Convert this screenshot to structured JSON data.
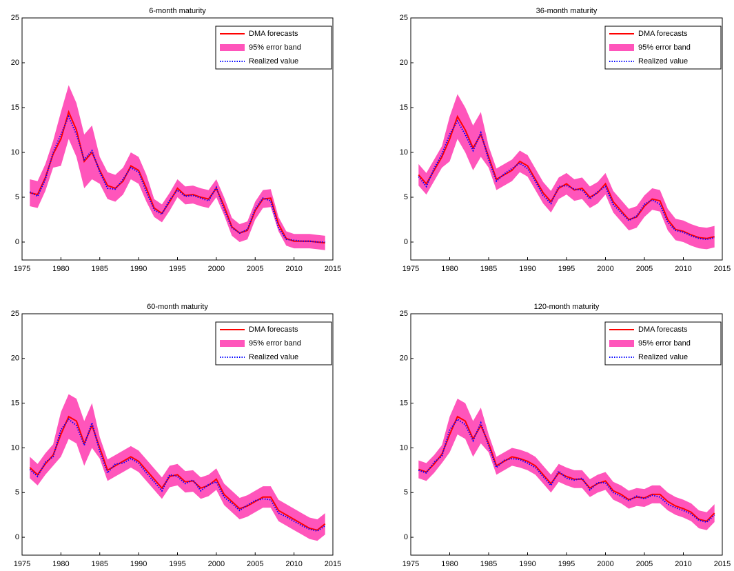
{
  "chart_data": [
    {
      "type": "line",
      "title": "6-month maturity",
      "legend": "upper right",
      "xlim": [
        1975,
        2015
      ],
      "ylim": [
        -2,
        25
      ],
      "xticks": [
        1975,
        1980,
        1985,
        1990,
        1995,
        2000,
        2005,
        2010,
        2015
      ],
      "yticks": [
        0,
        5,
        10,
        15,
        20,
        25
      ],
      "x": [
        1976,
        1977,
        1978,
        1979,
        1980,
        1981,
        1982,
        1983,
        1984,
        1985,
        1986,
        1987,
        1988,
        1989,
        1990,
        1991,
        1992,
        1993,
        1994,
        1995,
        1996,
        1997,
        1998,
        1999,
        2000,
        2001,
        2002,
        2003,
        2004,
        2005,
        2006,
        2007,
        2008,
        2009,
        2010,
        2011,
        2012,
        2013,
        2014
      ],
      "series": [
        {
          "name": "DMA forecasts",
          "color": "#ff0000",
          "values": [
            5.5,
            5.3,
            7.2,
            9.8,
            11.5,
            14.5,
            12.5,
            9.0,
            10.0,
            8.0,
            6.3,
            6.0,
            6.8,
            8.5,
            8.0,
            6.0,
            3.8,
            3.2,
            4.5,
            6.0,
            5.2,
            5.3,
            5.0,
            4.8,
            6.0,
            4.0,
            1.7,
            1.0,
            1.3,
            3.5,
            4.8,
            4.9,
            2.0,
            0.4,
            0.1,
            0.1,
            0.1,
            0.0,
            -0.1
          ]
        },
        {
          "name": "95% error band",
          "color": "#ff55bb",
          "lower": [
            4.0,
            3.8,
            5.7,
            8.3,
            8.5,
            11.5,
            9.5,
            6.0,
            7.0,
            6.5,
            4.8,
            4.5,
            5.3,
            7.0,
            6.5,
            4.5,
            2.8,
            2.2,
            3.5,
            5.0,
            4.2,
            4.3,
            4.0,
            3.8,
            5.0,
            3.0,
            0.7,
            0.0,
            0.3,
            2.5,
            3.8,
            3.9,
            1.2,
            -0.4,
            -0.7,
            -0.7,
            -0.7,
            -0.8,
            -0.9
          ],
          "upper": [
            7.0,
            6.8,
            8.7,
            11.3,
            14.5,
            17.5,
            15.5,
            12.0,
            13.0,
            9.5,
            7.8,
            7.5,
            8.3,
            10.0,
            9.5,
            7.5,
            4.8,
            4.2,
            5.5,
            7.0,
            6.2,
            6.3,
            6.0,
            5.8,
            7.0,
            5.0,
            2.7,
            2.0,
            2.3,
            4.5,
            5.8,
            5.9,
            2.8,
            1.2,
            0.9,
            0.9,
            0.9,
            0.8,
            0.7
          ]
        },
        {
          "name": "Realized value",
          "color": "#0000ff",
          "linestyle": "dotted",
          "values": [
            5.6,
            5.1,
            7.0,
            10.0,
            12.0,
            14.0,
            12.0,
            9.2,
            10.2,
            7.8,
            6.0,
            5.9,
            7.0,
            8.3,
            7.8,
            5.6,
            3.6,
            3.1,
            4.7,
            5.8,
            5.1,
            5.2,
            4.9,
            4.6,
            6.1,
            3.6,
            1.6,
            1.0,
            1.4,
            3.7,
            4.9,
            4.6,
            1.6,
            0.3,
            0.2,
            0.1,
            0.1,
            0.0,
            0.0
          ]
        }
      ]
    },
    {
      "type": "line",
      "title": "36-month maturity",
      "legend": "upper right",
      "xlim": [
        1975,
        2015
      ],
      "ylim": [
        -2,
        25
      ],
      "xticks": [
        1975,
        1980,
        1985,
        1990,
        1995,
        2000,
        2005,
        2010,
        2015
      ],
      "yticks": [
        0,
        5,
        10,
        15,
        20,
        25
      ],
      "x": [
        1976,
        1977,
        1978,
        1979,
        1980,
        1981,
        1982,
        1983,
        1984,
        1985,
        1986,
        1987,
        1988,
        1989,
        1990,
        1991,
        1992,
        1993,
        1994,
        1995,
        1996,
        1997,
        1998,
        1999,
        2000,
        2001,
        2002,
        2003,
        2004,
        2005,
        2006,
        2007,
        2008,
        2009,
        2010,
        2011,
        2012,
        2013,
        2014
      ],
      "series": [
        {
          "name": "DMA forecasts",
          "color": "#ff0000",
          "values": [
            7.5,
            6.5,
            8.0,
            9.5,
            11.5,
            14.0,
            12.5,
            10.5,
            12.0,
            9.5,
            7.0,
            7.5,
            8.0,
            9.0,
            8.5,
            7.0,
            5.5,
            4.5,
            6.0,
            6.5,
            5.8,
            6.0,
            5.0,
            5.5,
            6.5,
            4.5,
            3.5,
            2.5,
            2.8,
            4.0,
            4.8,
            4.6,
            2.5,
            1.4,
            1.2,
            0.8,
            0.5,
            0.4,
            0.6
          ]
        },
        {
          "name": "95% error band",
          "color": "#ff55bb",
          "lower": [
            6.3,
            5.3,
            6.8,
            8.3,
            9.0,
            11.5,
            10.0,
            8.0,
            9.5,
            8.3,
            5.8,
            6.3,
            6.8,
            7.8,
            7.3,
            5.8,
            4.3,
            3.3,
            4.8,
            5.3,
            4.6,
            4.8,
            3.8,
            4.3,
            5.3,
            3.3,
            2.3,
            1.3,
            1.6,
            2.8,
            3.6,
            3.4,
            1.3,
            0.2,
            0.0,
            -0.4,
            -0.7,
            -0.8,
            -0.6
          ],
          "upper": [
            8.7,
            7.7,
            9.2,
            10.7,
            14.0,
            16.5,
            15.0,
            13.0,
            14.5,
            10.7,
            8.2,
            8.7,
            9.2,
            10.2,
            9.7,
            8.2,
            6.7,
            5.7,
            7.2,
            7.7,
            7.0,
            7.2,
            6.2,
            6.7,
            7.7,
            5.7,
            4.7,
            3.7,
            4.0,
            5.2,
            6.0,
            5.8,
            3.7,
            2.6,
            2.4,
            2.0,
            1.7,
            1.6,
            1.8
          ]
        },
        {
          "name": "Realized value",
          "color": "#0000ff",
          "linestyle": "dotted",
          "values": [
            7.3,
            6.2,
            8.2,
            9.8,
            12.0,
            13.5,
            12.0,
            10.2,
            12.2,
            9.2,
            6.8,
            7.6,
            8.2,
            8.8,
            8.2,
            6.8,
            5.2,
            4.3,
            6.2,
            6.3,
            5.9,
            5.8,
            4.8,
            5.6,
            6.2,
            4.2,
            3.3,
            2.4,
            2.9,
            4.2,
            4.7,
            4.2,
            2.2,
            1.3,
            1.1,
            0.7,
            0.4,
            0.3,
            0.5
          ]
        }
      ]
    },
    {
      "type": "line",
      "title": "60-month maturity",
      "legend": "upper right",
      "xlim": [
        1975,
        2015
      ],
      "ylim": [
        -2,
        25
      ],
      "xticks": [
        1975,
        1980,
        1985,
        1990,
        1995,
        2000,
        2005,
        2010,
        2015
      ],
      "yticks": [
        0,
        5,
        10,
        15,
        20,
        25
      ],
      "x": [
        1976,
        1977,
        1978,
        1979,
        1980,
        1981,
        1982,
        1983,
        1984,
        1985,
        1986,
        1987,
        1988,
        1989,
        1990,
        1991,
        1992,
        1993,
        1994,
        1995,
        1996,
        1997,
        1998,
        1999,
        2000,
        2001,
        2002,
        2003,
        2004,
        2005,
        2006,
        2007,
        2008,
        2009,
        2010,
        2011,
        2012,
        2013,
        2014
      ],
      "series": [
        {
          "name": "DMA forecasts",
          "color": "#ff0000",
          "values": [
            7.8,
            7.0,
            8.2,
            9.2,
            11.5,
            13.5,
            13.0,
            10.5,
            12.5,
            10.0,
            7.5,
            8.0,
            8.5,
            9.0,
            8.5,
            7.5,
            6.5,
            5.5,
            6.8,
            7.0,
            6.2,
            6.3,
            5.5,
            5.8,
            6.5,
            4.8,
            4.0,
            3.2,
            3.5,
            4.0,
            4.5,
            4.5,
            3.0,
            2.5,
            2.0,
            1.5,
            1.0,
            0.8,
            1.5
          ]
        },
        {
          "name": "95% error band",
          "color": "#ff55bb",
          "lower": [
            6.6,
            5.8,
            7.0,
            8.0,
            9.0,
            11.0,
            10.5,
            8.0,
            10.0,
            8.8,
            6.3,
            6.8,
            7.3,
            7.8,
            7.3,
            6.3,
            5.3,
            4.3,
            5.6,
            5.8,
            5.0,
            5.1,
            4.3,
            4.6,
            5.3,
            3.6,
            2.8,
            2.0,
            2.3,
            2.8,
            3.3,
            3.3,
            1.8,
            1.3,
            0.8,
            0.3,
            -0.2,
            -0.4,
            0.3
          ],
          "upper": [
            9.0,
            8.2,
            9.4,
            10.4,
            14.0,
            16.0,
            15.5,
            13.0,
            15.0,
            11.2,
            8.7,
            9.2,
            9.7,
            10.2,
            9.7,
            8.7,
            7.7,
            6.7,
            8.0,
            8.2,
            7.4,
            7.5,
            6.7,
            7.0,
            7.7,
            6.0,
            5.2,
            4.4,
            4.7,
            5.2,
            5.7,
            5.7,
            4.2,
            3.7,
            3.2,
            2.7,
            2.2,
            2.0,
            2.7
          ]
        },
        {
          "name": "Realized value",
          "color": "#0000ff",
          "linestyle": "dotted",
          "values": [
            7.6,
            6.8,
            8.4,
            9.0,
            12.0,
            13.2,
            12.5,
            10.3,
            12.8,
            9.6,
            7.2,
            8.2,
            8.3,
            8.8,
            8.3,
            7.2,
            6.2,
            5.2,
            7.0,
            6.8,
            6.0,
            6.4,
            5.2,
            5.9,
            6.2,
            4.5,
            3.8,
            3.0,
            3.6,
            4.1,
            4.3,
            4.2,
            2.7,
            2.3,
            1.8,
            1.3,
            0.9,
            0.7,
            1.3
          ]
        }
      ]
    },
    {
      "type": "line",
      "title": "120-month maturity",
      "legend": "upper right",
      "xlim": [
        1975,
        2015
      ],
      "ylim": [
        -2,
        25
      ],
      "xticks": [
        1975,
        1980,
        1985,
        1990,
        1995,
        2000,
        2005,
        2010,
        2015
      ],
      "yticks": [
        0,
        5,
        10,
        15,
        20,
        25
      ],
      "x": [
        1976,
        1977,
        1978,
        1979,
        1980,
        1981,
        1982,
        1983,
        1984,
        1985,
        1986,
        1987,
        1988,
        1989,
        1990,
        1991,
        1992,
        1993,
        1994,
        1995,
        1996,
        1997,
        1998,
        1999,
        2000,
        2001,
        2002,
        2003,
        2004,
        2005,
        2006,
        2007,
        2008,
        2009,
        2010,
        2011,
        2012,
        2013,
        2014
      ],
      "series": [
        {
          "name": "DMA forecasts",
          "color": "#ff0000",
          "values": [
            7.6,
            7.3,
            8.2,
            9.3,
            11.5,
            13.5,
            13.0,
            11.0,
            12.5,
            10.5,
            8.0,
            8.5,
            9.0,
            8.8,
            8.5,
            8.0,
            7.0,
            6.0,
            7.2,
            6.8,
            6.5,
            6.5,
            5.5,
            6.0,
            6.3,
            5.2,
            4.8,
            4.2,
            4.5,
            4.4,
            4.8,
            4.8,
            4.0,
            3.5,
            3.2,
            2.8,
            2.0,
            1.8,
            2.7
          ]
        },
        {
          "name": "95% error band",
          "color": "#ff55bb",
          "lower": [
            6.6,
            6.3,
            7.2,
            8.3,
            9.5,
            11.5,
            11.0,
            9.0,
            10.5,
            9.5,
            7.0,
            7.5,
            8.0,
            7.8,
            7.5,
            7.0,
            6.0,
            5.0,
            6.2,
            5.8,
            5.5,
            5.5,
            4.5,
            5.0,
            5.3,
            4.2,
            3.8,
            3.2,
            3.5,
            3.4,
            3.8,
            3.8,
            3.0,
            2.5,
            2.2,
            1.8,
            1.0,
            0.8,
            1.7
          ],
          "upper": [
            8.6,
            8.3,
            9.2,
            10.3,
            13.5,
            15.5,
            15.0,
            13.0,
            14.5,
            11.5,
            9.0,
            9.5,
            10.0,
            9.8,
            9.5,
            9.0,
            8.0,
            7.0,
            8.2,
            7.8,
            7.5,
            7.5,
            6.5,
            7.0,
            7.3,
            6.2,
            5.8,
            5.2,
            5.5,
            5.4,
            5.8,
            5.8,
            5.0,
            4.5,
            4.2,
            3.8,
            3.0,
            2.8,
            3.7
          ]
        },
        {
          "name": "Realized value",
          "color": "#0000ff",
          "linestyle": "dotted",
          "values": [
            7.5,
            7.2,
            8.4,
            9.1,
            12.0,
            13.2,
            12.6,
            10.8,
            12.8,
            10.2,
            7.8,
            8.6,
            8.8,
            8.7,
            8.3,
            7.8,
            6.8,
            5.8,
            7.4,
            6.6,
            6.4,
            6.6,
            5.3,
            6.1,
            6.1,
            5.0,
            4.6,
            4.1,
            4.6,
            4.3,
            4.7,
            4.5,
            3.7,
            3.3,
            3.0,
            2.6,
            1.9,
            1.7,
            2.5
          ]
        }
      ]
    }
  ]
}
